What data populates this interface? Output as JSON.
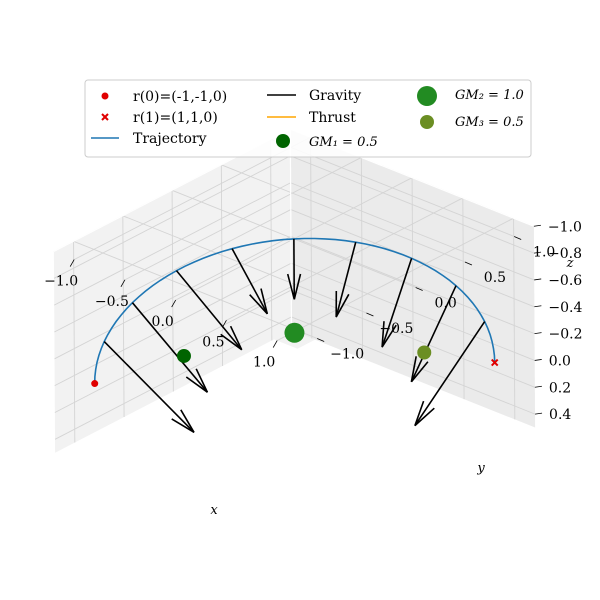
{
  "chart_data": {
    "type": "3d-line-scatter-quiver",
    "title": "",
    "xlabel": "x",
    "ylabel": "y",
    "zlabel": "z",
    "xlim": [
      -1.2,
      1.2
    ],
    "ylim": [
      -1.2,
      1.2
    ],
    "zlim": [
      -1.0,
      0.5
    ],
    "x_ticks": [
      "−1.0",
      "−0.5",
      "0.0",
      "0.5",
      "1.0"
    ],
    "y_ticks": [
      "−1.0",
      "−0.5",
      "0.0",
      "0.5",
      "1.0"
    ],
    "z_ticks": [
      "−1.0",
      "−0.8",
      "−0.6",
      "−0.4",
      "−0.2",
      "0.0",
      "0.2",
      "0.4"
    ],
    "grid": true,
    "legend_position": "top",
    "legend": [
      {
        "label": "r(0)=(-1,-1,0)",
        "kind": "dot",
        "color": "#e00000"
      },
      {
        "label": "r(1)=(1,1,0)",
        "kind": "x",
        "color": "#e00000"
      },
      {
        "label": "Trajectory",
        "kind": "line",
        "color": "#1f77b4"
      },
      {
        "label": "Gravity",
        "kind": "line",
        "color": "#000000"
      },
      {
        "label": "Thrust",
        "kind": "line",
        "color": "#ffa500"
      },
      {
        "label": "GM₁ = 0.5",
        "kind": "bigdot",
        "color": "#006400"
      },
      {
        "label": "GM₂ = 1.0",
        "kind": "bigdot",
        "color": "#228b22"
      },
      {
        "label": "GM₃ = 0.5",
        "kind": "bigdot",
        "color": "#6b8e23"
      }
    ],
    "start_point": {
      "x": -1,
      "y": -1,
      "z": 0
    },
    "end_point": {
      "x": 1,
      "y": 1,
      "z": 0
    },
    "trajectory": {
      "name": "Trajectory",
      "color": "#1f77b4",
      "description": "semicircular arc from r(0) to r(1), z = -sin(pi*t)",
      "samples": 60
    },
    "bodies": [
      {
        "name": "GM₁",
        "gm": 0.5,
        "color": "#006400",
        "x": -0.8,
        "y": -0.3,
        "z": 0.0
      },
      {
        "name": "GM₂",
        "gm": 1.0,
        "color": "#228b22",
        "x": 0.0,
        "y": 0.0,
        "z": -0.3
      },
      {
        "name": "GM₃",
        "gm": 0.5,
        "color": "#6b8e23",
        "x": 0.5,
        "y": 0.8,
        "z": 0.0
      }
    ],
    "gravity_vectors": [
      {
        "t": 0.1,
        "dx": 0.1,
        "dy": 0.8,
        "dz": 0.95
      },
      {
        "t": 0.2,
        "dx": 0.15,
        "dy": 0.6,
        "dz": 0.85
      },
      {
        "t": 0.3,
        "dx": 0.2,
        "dy": 0.45,
        "dz": 0.7
      },
      {
        "t": 0.4,
        "dx": 0.1,
        "dy": 0.25,
        "dz": 0.55
      },
      {
        "t": 0.5,
        "dx": 0.0,
        "dy": 0.0,
        "dz": 0.45
      },
      {
        "t": 0.6,
        "dx": -0.1,
        "dy": -0.1,
        "dz": 0.55
      },
      {
        "t": 0.7,
        "dx": -0.15,
        "dy": -0.15,
        "dz": 0.65
      },
      {
        "t": 0.8,
        "dx": -0.3,
        "dy": -0.15,
        "dz": 0.75
      },
      {
        "t": 0.9,
        "dx": -0.5,
        "dy": -0.2,
        "dz": 0.85
      }
    ]
  }
}
